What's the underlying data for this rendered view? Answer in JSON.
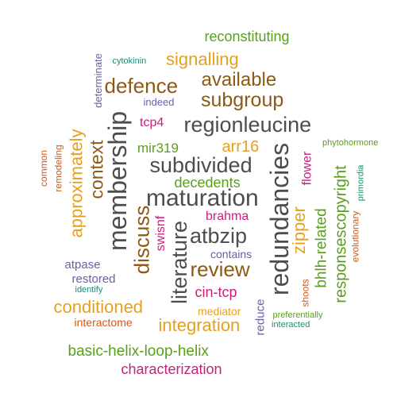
{
  "colors": {
    "gray": "#4d4d4d",
    "brown": "#8c5a14",
    "orange": "#e6a020",
    "green": "#5a9e1e",
    "magenta": "#cc1c80",
    "purple": "#6b5fa8",
    "teal": "#1b8f74",
    "rust": "#d05a18"
  },
  "words": [
    {
      "text": "reconstituting",
      "color": "green"
    },
    {
      "text": "signalling",
      "color": "orange"
    },
    {
      "text": "cytokinin",
      "color": "teal"
    },
    {
      "text": "determinate",
      "color": "purple"
    },
    {
      "text": "available",
      "color": "brown"
    },
    {
      "text": "defence",
      "color": "brown"
    },
    {
      "text": "subgroup",
      "color": "brown"
    },
    {
      "text": "indeed",
      "color": "purple"
    },
    {
      "text": "membership",
      "color": "gray"
    },
    {
      "text": "tcp4",
      "color": "magenta"
    },
    {
      "text": "regionleucine",
      "color": "gray"
    },
    {
      "text": "remodeling",
      "color": "rust"
    },
    {
      "text": "common",
      "color": "rust"
    },
    {
      "text": "approximately",
      "color": "orange"
    },
    {
      "text": "context",
      "color": "brown"
    },
    {
      "text": "mir319",
      "color": "green"
    },
    {
      "text": "arr16",
      "color": "orange"
    },
    {
      "text": "phytohormone",
      "color": "green"
    },
    {
      "text": "subdivided",
      "color": "gray"
    },
    {
      "text": "redundancies",
      "color": "gray"
    },
    {
      "text": "flower",
      "color": "magenta"
    },
    {
      "text": "responsescopyright",
      "color": "green"
    },
    {
      "text": "primordia",
      "color": "teal"
    },
    {
      "text": "decedents",
      "color": "green"
    },
    {
      "text": "maturation",
      "color": "gray"
    },
    {
      "text": "brahma",
      "color": "magenta"
    },
    {
      "text": "discuss",
      "color": "brown"
    },
    {
      "text": "swisnf",
      "color": "magenta"
    },
    {
      "text": "literature",
      "color": "gray"
    },
    {
      "text": "atbzip",
      "color": "gray"
    },
    {
      "text": "zipper",
      "color": "orange"
    },
    {
      "text": "bhlh-related",
      "color": "green"
    },
    {
      "text": "evolutionary",
      "color": "rust"
    },
    {
      "text": "contains",
      "color": "purple"
    },
    {
      "text": "review",
      "color": "brown"
    },
    {
      "text": "atpase",
      "color": "purple"
    },
    {
      "text": "restored",
      "color": "purple"
    },
    {
      "text": "identify",
      "color": "teal"
    },
    {
      "text": "cin-tcp",
      "color": "magenta"
    },
    {
      "text": "reduce",
      "color": "purple"
    },
    {
      "text": "shoots",
      "color": "rust"
    },
    {
      "text": "conditioned",
      "color": "orange"
    },
    {
      "text": "mediator",
      "color": "orange"
    },
    {
      "text": "preferentially",
      "color": "green"
    },
    {
      "text": "interacted",
      "color": "teal"
    },
    {
      "text": "interactome",
      "color": "rust"
    },
    {
      "text": "integration",
      "color": "orange"
    },
    {
      "text": "basic-helix-loop-helix",
      "color": "green"
    },
    {
      "text": "characterization",
      "color": "magenta"
    }
  ]
}
